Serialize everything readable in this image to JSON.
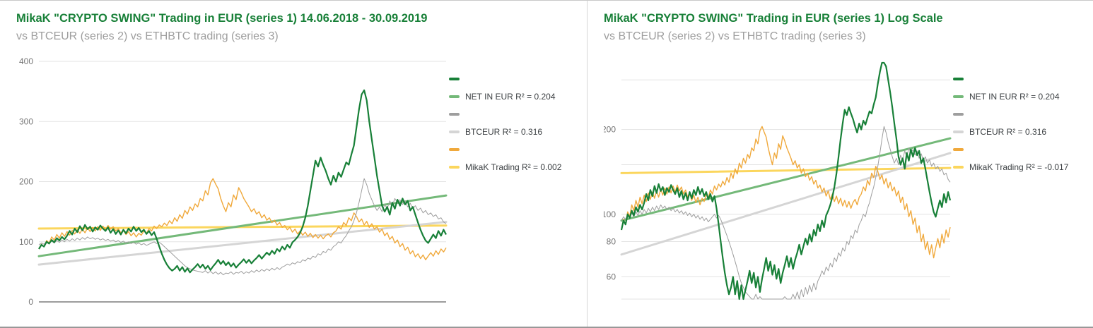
{
  "chart_data": [
    {
      "type": "line",
      "title": "MikaK \"CRYPTO SWING\" Trading in EUR (series 1) 14.06.2018 - 30.09.2019",
      "subtitle": "vs BTCEUR (series 2) vs ETHBTC trading (series 3)",
      "scale": "linear",
      "xlabel": "",
      "ylabel": "",
      "ylim": [
        0,
        400
      ],
      "yticks": [
        {
          "value": 0,
          "label": "0",
          "axis": true
        },
        {
          "value": 100,
          "label": "100"
        },
        {
          "value": 200,
          "label": "200"
        },
        {
          "value": 300,
          "label": "300"
        },
        {
          "value": 400,
          "label": "400"
        }
      ],
      "x_range": "14.06.2018 - 30.09.2019 (x axis unlabeled)",
      "series": [
        {
          "name": "NET IN EUR",
          "color": "#188038",
          "width": 2.2,
          "values": [
            88,
            95,
            92,
            100,
            97,
            103,
            99,
            106,
            102,
            108,
            104,
            110,
            118,
            112,
            122,
            116,
            126,
            119,
            128,
            121,
            125,
            117,
            124,
            120,
            127,
            122,
            118,
            124,
            115,
            121,
            113,
            119,
            112,
            120,
            114,
            122,
            117,
            125,
            118,
            123,
            116,
            120,
            113,
            118,
            111,
            116,
            105,
            92,
            80,
            70,
            62,
            56,
            52,
            55,
            60,
            52,
            58,
            50,
            56,
            49,
            54,
            58,
            63,
            57,
            62,
            55,
            60,
            53,
            59,
            64,
            70,
            63,
            68,
            61,
            66,
            59,
            64,
            57,
            62,
            66,
            71,
            65,
            70,
            64,
            69,
            73,
            78,
            72,
            77,
            82,
            78,
            85,
            80,
            88,
            84,
            92,
            87,
            95,
            90,
            99,
            103,
            108,
            115,
            125,
            140,
            160,
            185,
            210,
            235,
            225,
            240,
            228,
            218,
            205,
            195,
            210,
            200,
            215,
            208,
            220,
            232,
            228,
            245,
            260,
            290,
            320,
            345,
            352,
            335,
            300,
            270,
            240,
            210,
            185,
            160,
            150,
            158,
            145,
            165,
            155,
            170,
            160,
            172,
            162,
            168,
            152,
            158,
            145,
            132,
            120,
            110,
            102,
            98,
            105,
            112,
            106,
            118,
            110,
            120,
            112
          ]
        },
        {
          "name": "BTCEUR",
          "color": "#9e9e9e",
          "width": 1,
          "values": [
            95,
            98,
            96,
            100,
            97,
            101,
            98,
            102,
            99,
            103,
            100,
            104,
            101,
            105,
            102,
            106,
            103,
            107,
            104,
            108,
            105,
            107,
            104,
            106,
            103,
            105,
            102,
            104,
            101,
            103,
            100,
            102,
            99,
            101,
            98,
            100,
            97,
            99,
            96,
            98,
            95,
            97,
            94,
            96,
            98,
            100,
            97,
            99,
            96,
            92,
            88,
            84,
            80,
            76,
            72,
            68,
            64,
            60,
            57,
            55,
            53,
            52,
            51,
            50,
            49,
            52,
            48,
            51,
            47,
            50,
            46,
            49,
            45,
            48,
            47,
            50,
            46,
            49,
            48,
            51,
            47,
            50,
            48,
            52,
            49,
            53,
            50,
            54,
            51,
            55,
            52,
            56,
            53,
            57,
            54,
            58,
            60,
            63,
            61,
            65,
            63,
            67,
            65,
            70,
            68,
            73,
            71,
            76,
            74,
            80,
            78,
            84,
            82,
            88,
            86,
            92,
            95,
            100,
            98,
            105,
            110,
            118,
            125,
            135,
            148,
            165,
            185,
            205,
            195,
            180,
            170,
            160,
            152,
            158,
            150,
            162,
            155,
            168,
            160,
            172,
            165,
            170,
            162,
            168,
            158,
            164,
            155,
            160,
            152,
            156,
            148,
            152,
            145,
            148,
            142,
            145,
            138,
            140,
            133,
            130
          ]
        },
        {
          "name": "MikaK Trading (ETHBTC)",
          "color": "#f0a93c",
          "width": 1.4,
          "values": [
            88,
            96,
            92,
            102,
            98,
            108,
            103,
            112,
            106,
            115,
            109,
            117,
            111,
            119,
            113,
            120,
            114,
            121,
            115,
            123,
            117,
            124,
            118,
            125,
            119,
            126,
            120,
            127,
            121,
            125,
            118,
            122,
            115,
            119,
            112,
            117,
            110,
            115,
            108,
            114,
            111,
            118,
            114,
            122,
            118,
            126,
            122,
            128,
            125,
            131,
            127,
            135,
            130,
            140,
            134,
            145,
            139,
            152,
            146,
            158,
            152,
            163,
            158,
            172,
            168,
            185,
            178,
            198,
            205,
            196,
            188,
            172,
            160,
            150,
            165,
            158,
            178,
            170,
            190,
            182,
            172,
            165,
            158,
            150,
            155,
            146,
            150,
            140,
            145,
            136,
            140,
            132,
            136,
            128,
            132,
            124,
            127,
            120,
            124,
            116,
            121,
            113,
            118,
            111,
            116,
            109,
            114,
            107,
            112,
            106,
            111,
            105,
            110,
            113,
            108,
            115,
            118,
            125,
            121,
            132,
            127,
            140,
            135,
            148,
            142,
            133,
            138,
            128,
            134,
            124,
            130,
            121,
            125,
            116,
            121,
            110,
            115,
            104,
            109,
            98,
            103,
            92,
            97,
            86,
            91,
            80,
            85,
            75,
            80,
            72,
            78,
            70,
            76,
            82,
            76,
            85,
            79,
            88,
            83,
            90
          ]
        }
      ],
      "trendlines": [
        {
          "for": "NET IN EUR",
          "color": "#74b979",
          "start": 76,
          "end": 177,
          "label": "NET IN EUR R² = 0.204"
        },
        {
          "for": "BTCEUR",
          "color": "#d5d5d5",
          "start": 62,
          "end": 133,
          "label": "BTCEUR R² = 0.316"
        },
        {
          "for": "MikaK Trading",
          "color": "#fbd65d",
          "start": 122,
          "end": 127,
          "label": "MikaK Trading R² = 0.002"
        }
      ],
      "legend": [
        {
          "color": "#188038",
          "label": ""
        },
        {
          "color": "#74b979",
          "label": "NET IN EUR R² = 0.204"
        },
        {
          "color": "#9e9e9e",
          "label": ""
        },
        {
          "color": "#d5d5d5",
          "label": "BTCEUR R² = 0.316"
        },
        {
          "color": "#f0a93c",
          "label": ""
        },
        {
          "color": "#fbd65d",
          "label": "MikaK Trading R² = 0.002"
        }
      ]
    },
    {
      "type": "line",
      "title": "MikaK \"CRYPTO SWING\" Trading in EUR (series 1) Log Scale",
      "subtitle": "vs BTCEUR (series 2) vs ETHBTC trading (series 3)",
      "scale": "log",
      "xlabel": "",
      "ylabel": "",
      "ylim": [
        50,
        345
      ],
      "yticks": [
        {
          "value": 50
        },
        {
          "value": 60,
          "label": "60"
        },
        {
          "value": 80,
          "label": "80"
        },
        {
          "value": 100,
          "label": "100"
        },
        {
          "value": 150
        },
        {
          "value": 200,
          "label": "200"
        },
        {
          "value": 300
        }
      ],
      "series_source": 0,
      "series_note": "identical data to first chart, plotted on logarithmic scale",
      "trendlines": [
        {
          "for": "NET IN EUR",
          "color": "#74b979",
          "start": 95,
          "end": 186,
          "label": "NET IN EUR R² = 0.204"
        },
        {
          "for": "BTCEUR",
          "color": "#d5d5d5",
          "start": 72,
          "end": 165,
          "label": "BTCEUR R² = 0.316"
        },
        {
          "for": "MikaK Trading",
          "color": "#fbd65d",
          "start": 140,
          "end": 146,
          "label": "MikaK Trading R² = -0.017"
        }
      ],
      "legend": [
        {
          "color": "#188038",
          "label": ""
        },
        {
          "color": "#74b979",
          "label": "NET IN EUR R² = 0.204"
        },
        {
          "color": "#9e9e9e",
          "label": ""
        },
        {
          "color": "#d5d5d5",
          "label": "BTCEUR R² = 0.316"
        },
        {
          "color": "#f0a93c",
          "label": ""
        },
        {
          "color": "#fbd65d",
          "label": "MikaK Trading R² = -0.017"
        }
      ]
    }
  ]
}
